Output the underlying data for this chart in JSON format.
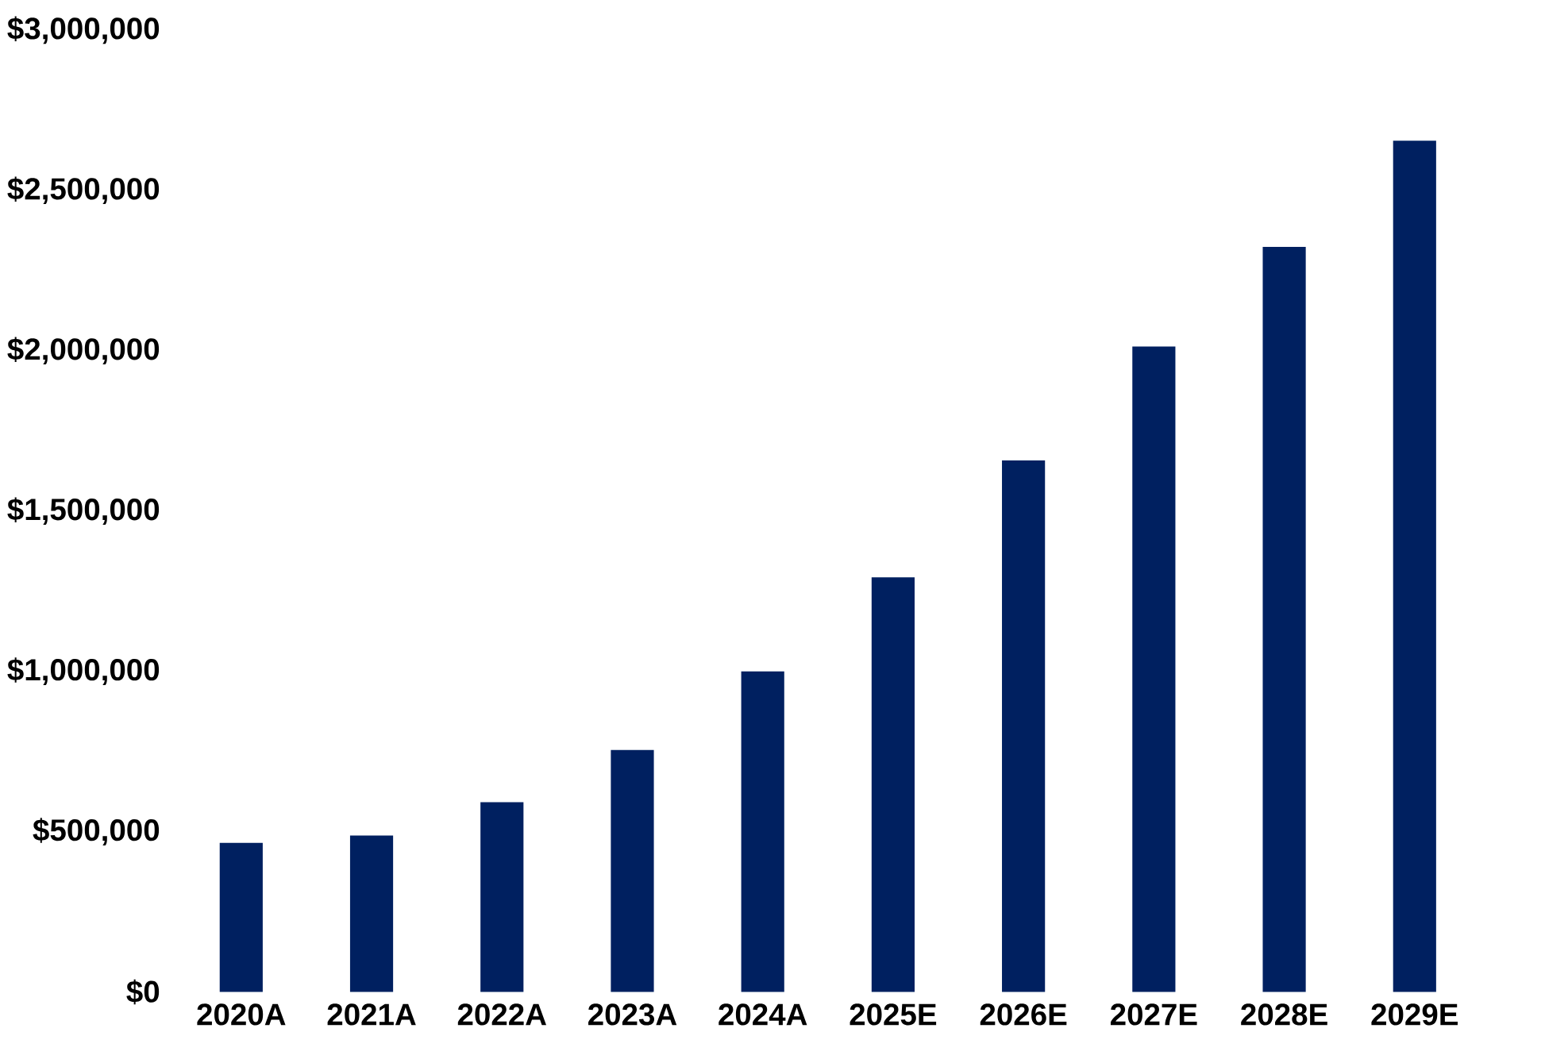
{
  "chart_data": {
    "type": "bar",
    "categories": [
      "2020A",
      "2021A",
      "2022A",
      "2023A",
      "2024A",
      "2025E",
      "2026E",
      "2027E",
      "2028E",
      "2029E"
    ],
    "values": [
      465000,
      488000,
      592000,
      755000,
      1000000,
      1293000,
      1658000,
      2013000,
      2324000,
      2655000
    ],
    "color": "#002060",
    "ylim": [
      0,
      3000000
    ],
    "yticks": [
      {
        "value": 0,
        "label": "$0"
      },
      {
        "value": 500000,
        "label": "$500,000"
      },
      {
        "value": 1000000,
        "label": "$1,000,000"
      },
      {
        "value": 1500000,
        "label": "$1,500,000"
      },
      {
        "value": 2000000,
        "label": "$2,000,000"
      },
      {
        "value": 2500000,
        "label": "$2,500,000"
      },
      {
        "value": 3000000,
        "label": "$3,000,000"
      }
    ]
  }
}
